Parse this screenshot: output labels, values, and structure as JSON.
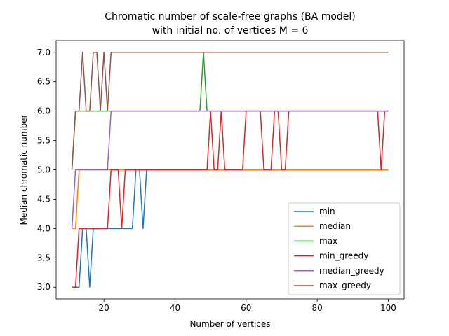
{
  "chart_data": {
    "type": "line",
    "title_lines": [
      "Chromatic number of scale-free graphs (BA model)",
      "with initial no. of vertices M = 6"
    ],
    "xlabel": "Number of vertices",
    "ylabel": "Median chromatic number",
    "xlim": [
      6.55,
      104.45
    ],
    "ylim": [
      2.8,
      7.2
    ],
    "x_ticks": [
      20,
      40,
      60,
      80,
      100
    ],
    "y_ticks": [
      3.0,
      3.5,
      4.0,
      4.5,
      5.0,
      5.5,
      6.0,
      6.5,
      7.0
    ],
    "grid": false,
    "legend_position": "lower right",
    "series": [
      {
        "name": "min",
        "color": "#1f77b4",
        "points": [
          [
            11,
            3
          ],
          [
            13,
            3
          ],
          [
            14,
            4
          ],
          [
            15,
            4
          ],
          [
            16,
            3
          ],
          [
            17,
            4
          ],
          [
            28,
            4
          ],
          [
            29,
            5
          ],
          [
            30,
            5
          ],
          [
            31,
            4
          ],
          [
            32,
            5
          ],
          [
            100,
            5
          ]
        ]
      },
      {
        "name": "median",
        "color": "#ff7f0e",
        "points": [
          [
            11,
            4
          ],
          [
            12,
            4
          ],
          [
            13,
            5
          ],
          [
            100,
            5
          ]
        ]
      },
      {
        "name": "max",
        "color": "#2ca02c",
        "points": [
          [
            11,
            5
          ],
          [
            12,
            6
          ],
          [
            47,
            6
          ],
          [
            48,
            7
          ],
          [
            49,
            6
          ],
          [
            100,
            6
          ]
        ]
      },
      {
        "name": "min_greedy",
        "color": "#d62728",
        "points": [
          [
            11,
            3
          ],
          [
            12,
            3
          ],
          [
            13,
            4
          ],
          [
            21,
            4
          ],
          [
            22,
            5
          ],
          [
            24,
            5
          ],
          [
            25,
            4
          ],
          [
            26,
            5
          ],
          [
            49,
            5
          ],
          [
            50,
            6
          ],
          [
            51,
            5
          ],
          [
            52,
            5
          ],
          [
            53,
            6
          ],
          [
            54,
            5
          ],
          [
            59,
            5
          ],
          [
            60,
            6
          ],
          [
            64,
            6
          ],
          [
            65,
            5
          ],
          [
            67,
            5
          ],
          [
            68,
            6
          ],
          [
            69,
            6
          ],
          [
            70,
            5
          ],
          [
            71,
            5
          ],
          [
            72,
            6
          ],
          [
            97,
            6
          ],
          [
            98,
            5
          ],
          [
            99,
            6
          ],
          [
            100,
            6
          ]
        ]
      },
      {
        "name": "median_greedy",
        "color": "#9467bd",
        "points": [
          [
            11,
            4
          ],
          [
            12,
            5
          ],
          [
            21,
            5
          ],
          [
            22,
            6
          ],
          [
            100,
            6
          ]
        ]
      },
      {
        "name": "max_greedy",
        "color": "#8c564b",
        "points": [
          [
            11,
            5
          ],
          [
            12,
            6
          ],
          [
            13,
            6
          ],
          [
            14,
            7
          ],
          [
            15,
            6
          ],
          [
            16,
            6
          ],
          [
            17,
            7
          ],
          [
            18,
            7
          ],
          [
            19,
            6
          ],
          [
            20,
            7
          ],
          [
            21,
            6
          ],
          [
            22,
            7
          ],
          [
            100,
            7
          ]
        ]
      }
    ]
  }
}
